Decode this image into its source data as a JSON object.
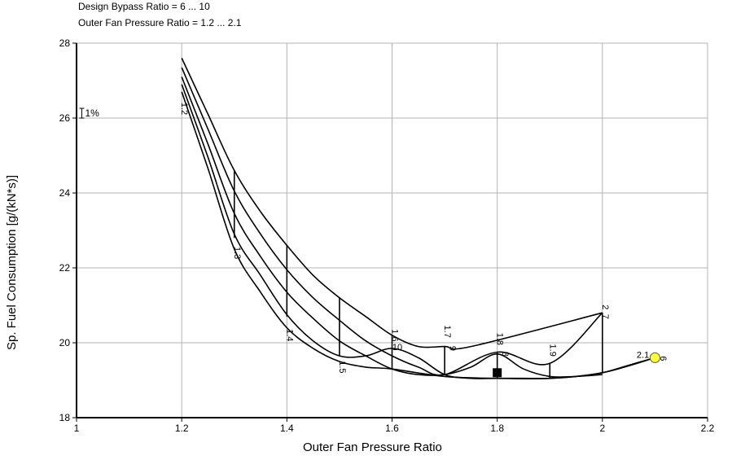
{
  "chart_data": {
    "type": "line",
    "subtitle_lines": [
      "Design Bypass Ratio = 6 ... 10",
      "Outer Fan Pressure Ratio = 1.2 ... 2.1"
    ],
    "xlabel": "Outer Fan Pressure Ratio",
    "ylabel": "Sp. Fuel Consumption [g/(kN*s)]",
    "xlim": [
      1,
      2.2
    ],
    "ylim": [
      18,
      28
    ],
    "xticks": [
      "1",
      "1.2",
      "1.4",
      "1.6",
      "1.8",
      "2",
      "2.2"
    ],
    "yticks": [
      "18",
      "20",
      "22",
      "24",
      "26",
      "28"
    ],
    "grid": true,
    "series": [
      {
        "x": [
          1.2,
          1.25,
          1.3,
          1.35,
          1.4,
          1.45,
          1.5,
          1.55,
          1.6,
          1.65,
          1.7,
          1.75,
          2.0
        ],
        "y": [
          27.6,
          26.1,
          24.6,
          23.5,
          22.6,
          21.8,
          21.2,
          20.7,
          20.2,
          19.9,
          19.9,
          19.9,
          20.8
        ]
      },
      {
        "x": [
          1.2,
          1.25,
          1.3,
          1.35,
          1.4,
          1.45,
          1.5,
          1.55,
          1.6,
          1.65,
          1.7,
          1.8,
          1.9,
          2.0
        ],
        "y": [
          27.35,
          25.7,
          24.05,
          22.9,
          21.95,
          21.2,
          20.6,
          20.05,
          19.65,
          19.35,
          19.15,
          19.75,
          19.45,
          20.8
        ]
      },
      {
        "x": [
          1.2,
          1.25,
          1.3,
          1.35,
          1.4,
          1.45,
          1.5,
          1.55,
          1.6,
          1.65,
          1.7,
          1.75,
          1.8,
          1.85,
          1.9,
          1.95,
          2.0
        ],
        "y": [
          27.1,
          25.3,
          23.45,
          22.3,
          21.35,
          20.65,
          20.05,
          19.65,
          19.3,
          19.15,
          19.15,
          19.35,
          19.7,
          19.3,
          19.1,
          19.1,
          19.15
        ]
      },
      {
        "x": [
          1.2,
          1.25,
          1.3,
          1.35,
          1.4,
          1.45,
          1.5,
          1.55,
          1.6,
          1.65,
          1.7,
          1.75,
          1.8,
          1.85,
          1.9,
          1.95,
          2.0,
          2.05,
          2.1
        ],
        "y": [
          26.9,
          24.95,
          22.9,
          21.8,
          20.75,
          20.05,
          19.65,
          19.65,
          19.85,
          19.6,
          19.15,
          19.05,
          19.05,
          19.05,
          19.05,
          19.1,
          19.2,
          19.4,
          19.6
        ]
      },
      {
        "x": [
          1.2,
          1.25,
          1.3,
          1.35,
          1.4,
          1.45,
          1.5,
          1.55,
          1.6,
          1.7,
          1.8,
          1.9,
          2.0,
          2.1
        ],
        "y": [
          26.7,
          24.65,
          22.5,
          21.35,
          20.4,
          19.85,
          19.5,
          19.35,
          19.3,
          19.1,
          19.05,
          19.05,
          19.2,
          19.6
        ]
      }
    ],
    "iso_lines": [
      {
        "x": 1.3,
        "y": [
          22.8,
          24.6
        ]
      },
      {
        "x": 1.4,
        "y": [
          20.7,
          22.6
        ]
      },
      {
        "x": 1.5,
        "y": [
          19.65,
          21.2
        ]
      },
      {
        "x": 1.6,
        "y": [
          19.3,
          20.2
        ]
      },
      {
        "x": 1.7,
        "y": [
          19.15,
          19.9
        ]
      },
      {
        "x": 1.8,
        "y": [
          19.05,
          19.75
        ]
      },
      {
        "x": 1.9,
        "y": [
          19.05,
          19.45
        ]
      },
      {
        "x": 2.0,
        "y": [
          19.2,
          20.8
        ]
      }
    ],
    "annotations": [
      {
        "text": "1.2",
        "x": 1.2,
        "y": 26.25,
        "rotate": 90
      },
      {
        "text": "1.3",
        "x": 1.3,
        "y": 22.4,
        "rotate": 90
      },
      {
        "text": "1.4",
        "x": 1.4,
        "y": 20.2,
        "rotate": 90
      },
      {
        "text": "1.5",
        "x": 1.5,
        "y": 19.35,
        "rotate": 90
      },
      {
        "text": "1.6",
        "x": 1.6,
        "y": 20.2,
        "rotate": 90
      },
      {
        "text": "1.7",
        "x": 1.7,
        "y": 20.3,
        "rotate": 90
      },
      {
        "text": "1.8",
        "x": 1.8,
        "y": 20.1,
        "rotate": 90
      },
      {
        "text": "1.9",
        "x": 1.9,
        "y": 19.8,
        "rotate": 90
      },
      {
        "text": "2",
        "x": 2.0,
        "y": 20.95,
        "rotate": 90
      },
      {
        "text": "2.1",
        "x": 2.077,
        "y": 19.6,
        "rotate": 0
      },
      {
        "text": "10",
        "x": 1.61,
        "y": 19.8,
        "rotate": 0
      },
      {
        "text": "9",
        "x": 1.71,
        "y": 19.85,
        "rotate": 90
      },
      {
        "text": "8",
        "x": 1.81,
        "y": 19.7,
        "rotate": 90
      },
      {
        "text": "7",
        "x": 2.0,
        "y": 20.7,
        "rotate": 90
      },
      {
        "text": "6",
        "x": 2.11,
        "y": 19.58,
        "rotate": 90
      }
    ],
    "scale_bar": {
      "label": "1%",
      "x": 1.01,
      "y_from": 26.0,
      "y_to": 26.26
    },
    "markers": [
      {
        "shape": "square",
        "x": 1.8,
        "y": 19.2,
        "color": "#000000"
      },
      {
        "shape": "circle",
        "x": 2.1,
        "y": 19.6,
        "color": "#ffff33"
      }
    ],
    "colors": {
      "line": "#000000",
      "grid": "#b3b3b3",
      "axis": "#000000"
    }
  }
}
